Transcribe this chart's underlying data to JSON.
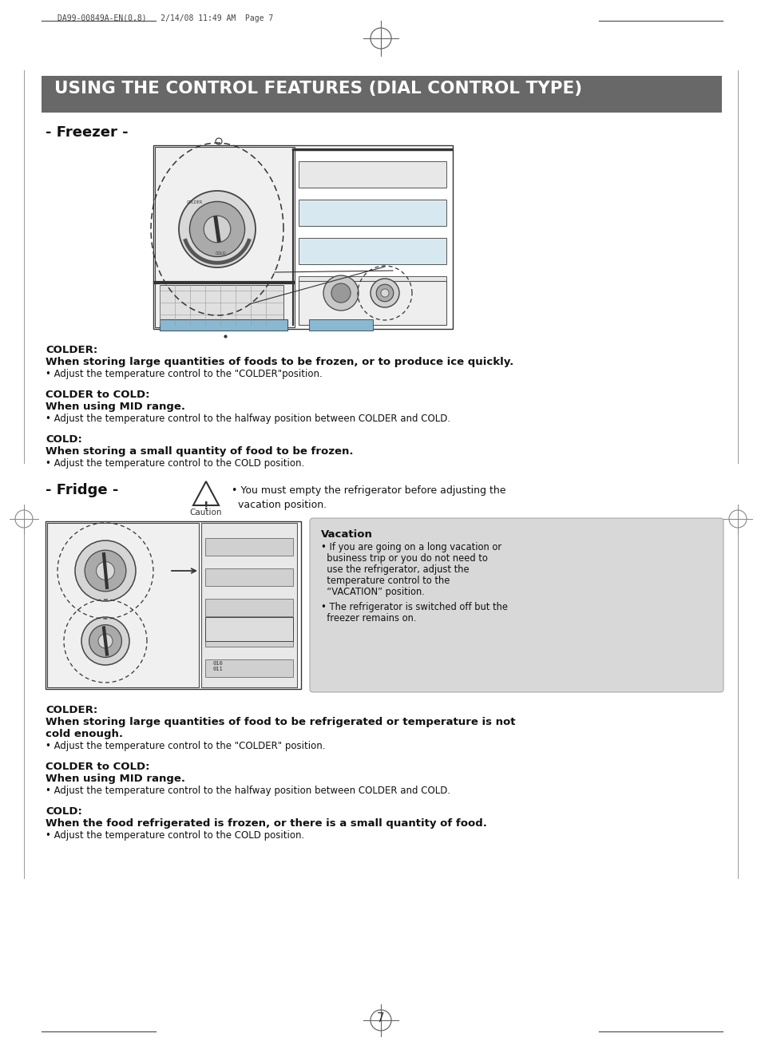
{
  "page_header": "DA99-00849A-EN(0.8)   2/14/08 11:49 AM  Page 7",
  "main_title": "USING THE CONTROL FEATURES (DIAL CONTROL TYPE)",
  "title_bg": "#686868",
  "title_text_color": "#ffffff",
  "section1_label": "- Freezer -",
  "freezer_sections": [
    {
      "heading": "COLDER:",
      "bold_line": "When storing large quantities of foods to be frozen, or to produce ice quickly.",
      "bullet": "• Adjust the temperature control to the \"COLDER\"position."
    },
    {
      "heading": "COLDER to COLD:",
      "bold_line": "When using MID range.",
      "bullet": "• Adjust the temperature control to the halfway position between COLDER and COLD."
    },
    {
      "heading": "COLD:",
      "bold_line": "When storing a small quantity of food to be frozen.",
      "bullet": "• Adjust the temperature control to the COLD position."
    }
  ],
  "section2_label": "- Fridge -",
  "caution_text": "• You must empty the refrigerator before adjusting the\n  vacation position.",
  "fridge_sections": [
    {
      "heading": "COLDER:",
      "bold_line_1": "When storing large quantities of food to be refrigerated or temperature is not",
      "bold_line_2": "cold enough.",
      "bullet": "• Adjust the temperature control to the \"COLDER\" position."
    },
    {
      "heading": "COLDER to COLD:",
      "bold_line_1": "When using MID range.",
      "bold_line_2": "",
      "bullet": "• Adjust the temperature control to the halfway position between COLDER and COLD."
    },
    {
      "heading": "COLD:",
      "bold_line_1": "When the food refrigerated is frozen, or there is a small quantity of food.",
      "bold_line_2": "",
      "bullet": "• Adjust the temperature control to the COLD position."
    }
  ],
  "vacation_title": "Vacation",
  "vacation_line1": "• If you are going on a long vacation or",
  "vacation_line2": "  business trip or you do not need to",
  "vacation_line3": "  use the refrigerator, adjust the",
  "vacation_line4": "  temperature control to the",
  "vacation_line5": "  “VACATION” position.",
  "vacation_line6": "• The refrigerator is switched off but the",
  "vacation_line7": "  freezer remains on.",
  "vacation_bg": "#d8d8d8",
  "page_number": "7",
  "bg_color": "#ffffff"
}
